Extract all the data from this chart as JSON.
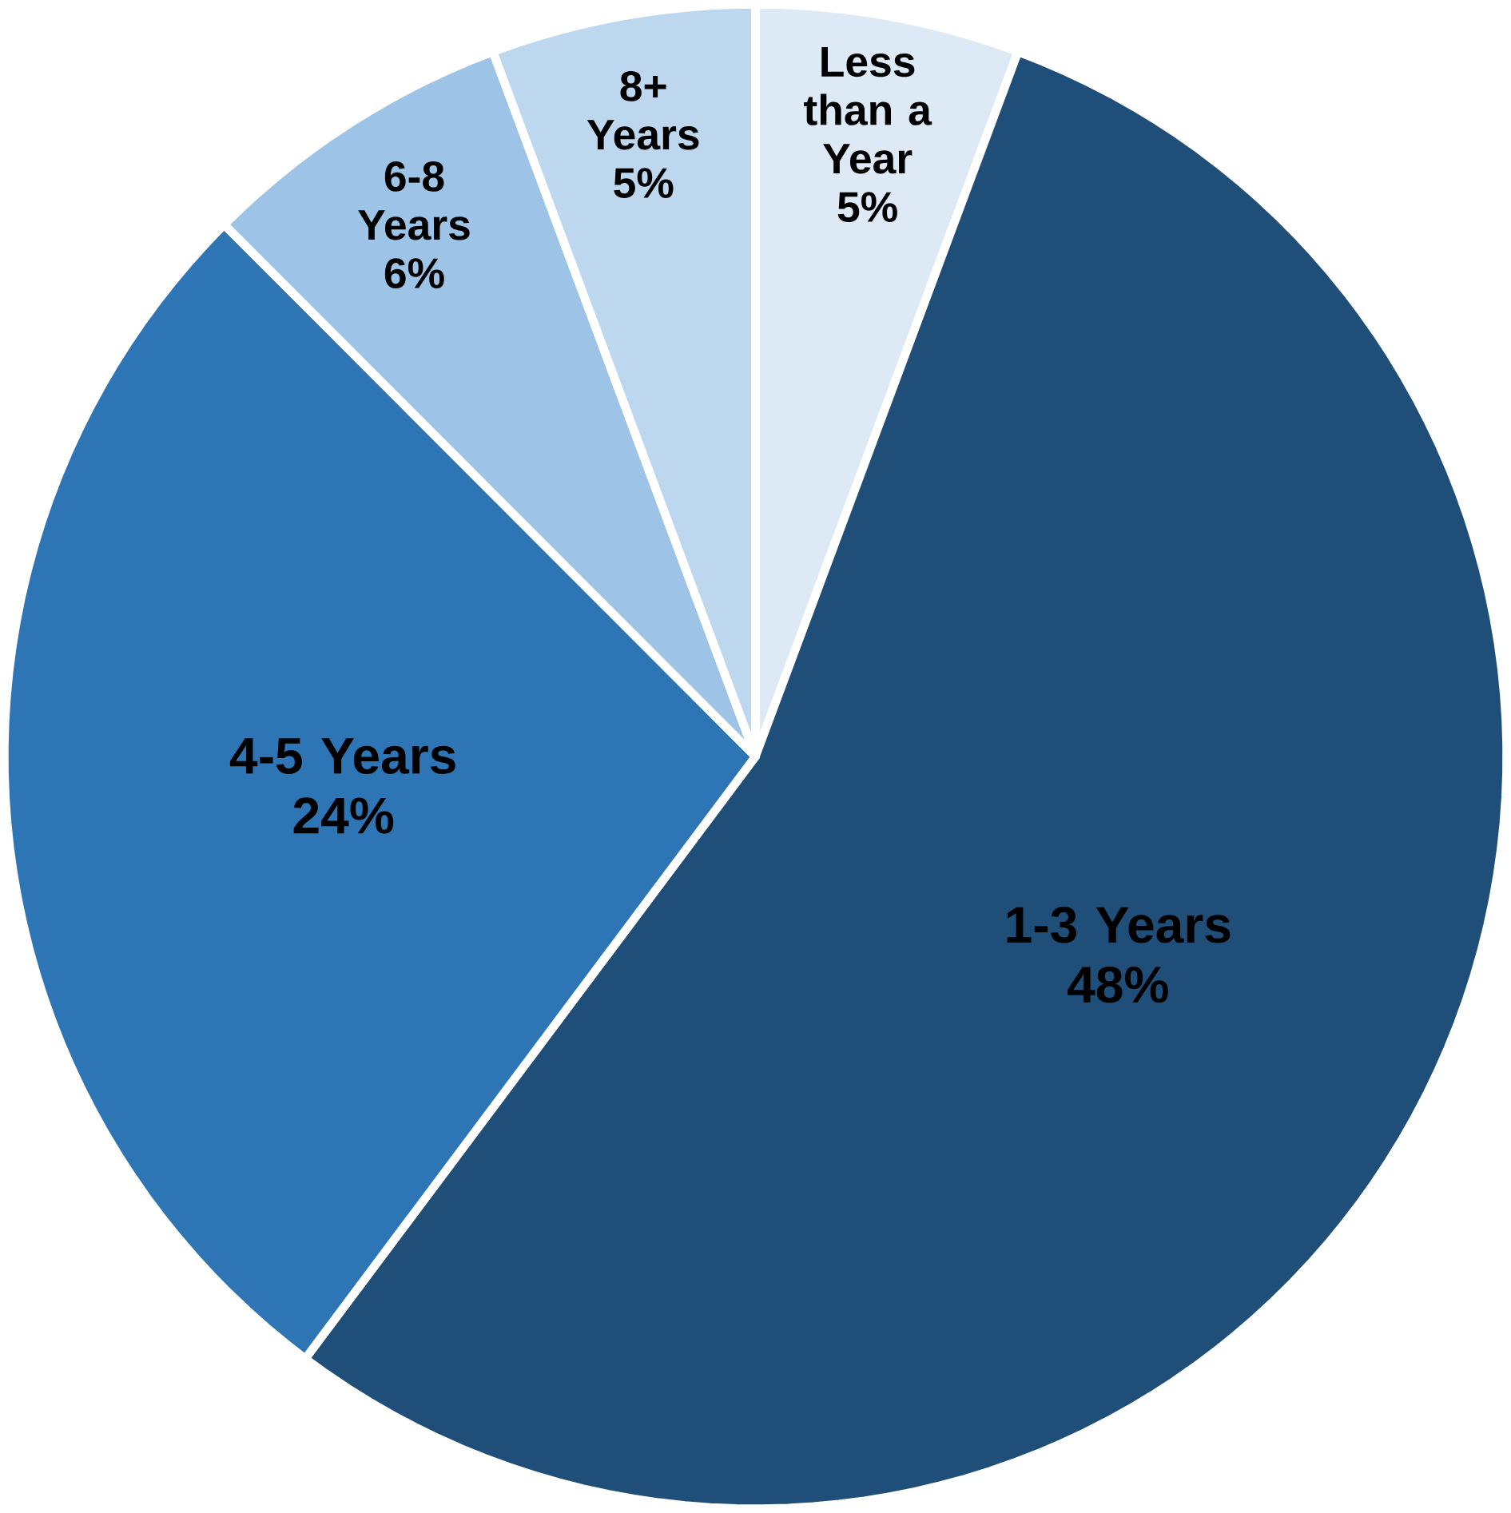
{
  "chart_data": {
    "type": "pie",
    "categories": [
      "Less than a Year",
      "1-3 Years",
      "4-5 Years",
      "6-8 Years",
      "8+ Years"
    ],
    "values": [
      5,
      48,
      24,
      6,
      5
    ],
    "value_labels": [
      "5%",
      "48%",
      "24%",
      "6%",
      "5%"
    ],
    "colors": [
      "#dde9f5",
      "#1f4e79",
      "#2e75b6",
      "#9dc3e6",
      "#bdd7ee"
    ]
  }
}
